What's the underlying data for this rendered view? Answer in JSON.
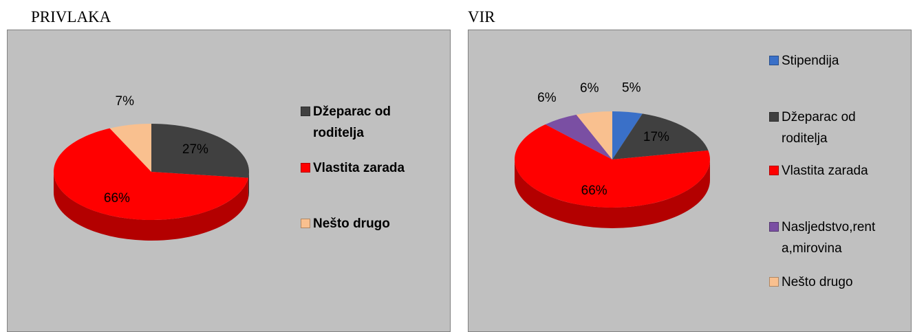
{
  "chart_data": [
    {
      "type": "pie",
      "title": "PRIVLAKA",
      "categories": [
        "Džeparac od roditelja",
        "Vlastita zarada",
        "Nešto drugo"
      ],
      "values": [
        27,
        66,
        7
      ],
      "value_labels": [
        "27%",
        "66%",
        "7%"
      ],
      "colors": [
        "#404040",
        "#ff0000",
        "#f9c08f"
      ]
    },
    {
      "type": "pie",
      "title": "VIR",
      "categories": [
        "Stipendija",
        "Džeparac od roditelja",
        "Vlastita zarada",
        "Nasljedstvo,renta,mirovina",
        "Nešto drugo"
      ],
      "values": [
        5,
        17,
        66,
        6,
        6
      ],
      "value_labels": [
        "5%",
        "17%",
        "66%",
        "6%",
        "6%"
      ],
      "colors": [
        "#3a70c8",
        "#404040",
        "#ff0000",
        "#7a4fa3",
        "#f9c08f"
      ]
    }
  ]
}
